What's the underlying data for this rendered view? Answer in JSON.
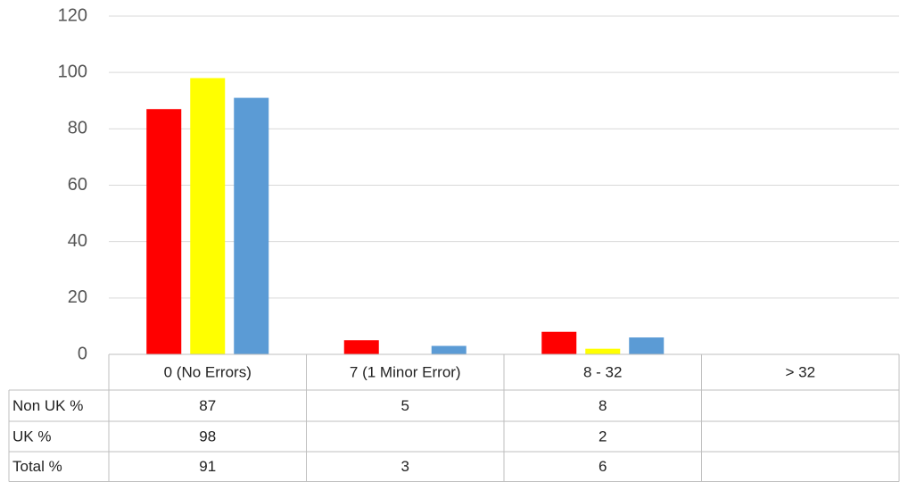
{
  "chart_data": {
    "type": "bar",
    "categories": [
      "0 (No Errors)",
      "7 (1 Minor Error)",
      "8 - 32",
      "> 32"
    ],
    "series": [
      {
        "name": "Non UK %",
        "color": "#ff0000",
        "values": [
          87,
          5,
          8,
          null
        ]
      },
      {
        "name": "UK %",
        "color": "#ffff00",
        "values": [
          98,
          null,
          2,
          null
        ]
      },
      {
        "name": "Total %",
        "color": "#5b9bd5",
        "values": [
          91,
          3,
          6,
          null
        ]
      }
    ],
    "ylim": [
      0,
      120
    ],
    "yticks": [
      0,
      20,
      40,
      60,
      80,
      100,
      120
    ],
    "grid": true,
    "data_table": true
  }
}
